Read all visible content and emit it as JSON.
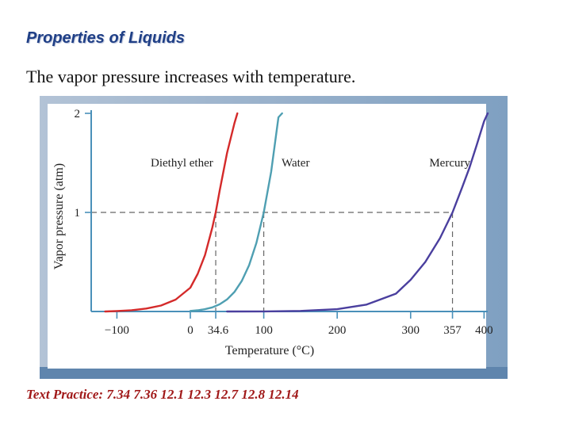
{
  "slide": {
    "title": "Properties of Liquids",
    "subtitle": "The vapor pressure increases with temperature.",
    "footer": "Text Practice: 7.34  7.36   12.1  12.3  12.7  12.8  12.14"
  },
  "chart_data": {
    "type": "line",
    "xlabel": "Temperature (°C)",
    "ylabel": "Vapor pressure (atm)",
    "xlim": [
      -135,
      405
    ],
    "ylim": [
      0,
      2
    ],
    "x_ticks": [
      "−100",
      "0",
      "34.6",
      "100",
      "200",
      "300",
      "357",
      "400"
    ],
    "x_tick_values": [
      -100,
      0,
      34.6,
      100,
      200,
      300,
      357,
      400
    ],
    "y_ticks": [
      "1",
      "2"
    ],
    "y_tick_values": [
      1,
      2
    ],
    "reference_line": {
      "y": 1,
      "style": "dashed"
    },
    "series": [
      {
        "name": "Diethyl ether",
        "color": "#d42a2a",
        "boiling_point": 34.6,
        "x": [
          -116,
          -100,
          -80,
          -60,
          -40,
          -20,
          0,
          10,
          20,
          30,
          34.6,
          40,
          50,
          60,
          64
        ],
        "y": [
          0.0,
          0.005,
          0.013,
          0.03,
          0.06,
          0.12,
          0.24,
          0.38,
          0.57,
          0.85,
          1.0,
          1.22,
          1.6,
          1.9,
          2.0
        ]
      },
      {
        "name": "Water",
        "color": "#4f9fb2",
        "boiling_point": 100,
        "x": [
          0,
          10,
          20,
          30,
          40,
          50,
          60,
          70,
          80,
          90,
          100,
          110,
          120,
          125
        ],
        "y": [
          0.006,
          0.012,
          0.023,
          0.042,
          0.073,
          0.122,
          0.197,
          0.307,
          0.467,
          0.692,
          1.0,
          1.41,
          1.96,
          2.0
        ]
      },
      {
        "name": "Mercury",
        "color": "#4a3f9e",
        "boiling_point": 357,
        "x": [
          50,
          100,
          150,
          200,
          240,
          280,
          300,
          320,
          340,
          357,
          370,
          380,
          390,
          400,
          405
        ],
        "y": [
          0.0,
          0.0004,
          0.006,
          0.023,
          0.07,
          0.18,
          0.32,
          0.5,
          0.74,
          1.0,
          1.25,
          1.45,
          1.68,
          1.92,
          2.0
        ]
      }
    ]
  },
  "colors": {
    "frame_top": "#b3c3d6",
    "frame_bottom": "#7fa0c1",
    "axis": "#4a90b9",
    "grid_dash": "#666666"
  }
}
